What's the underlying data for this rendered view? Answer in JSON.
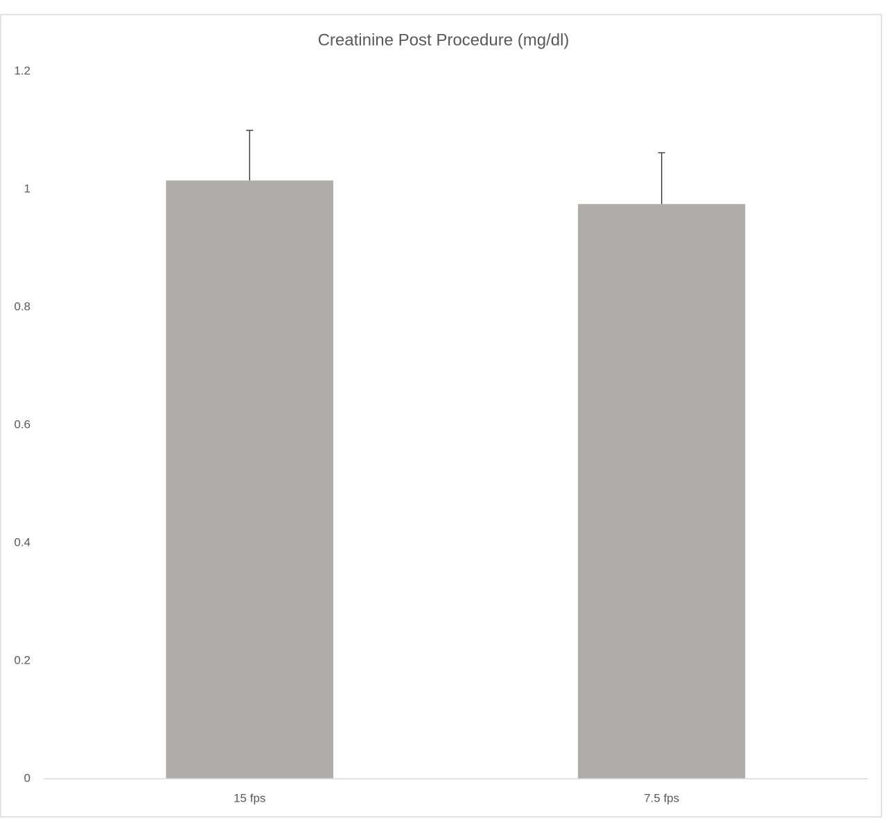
{
  "chart_data": {
    "type": "bar",
    "title": "Creatinine Post Procedure (mg/dl)",
    "categories": [
      "15 fps",
      "7.5 fps"
    ],
    "values": [
      1.015,
      0.975
    ],
    "errors": [
      0.085,
      0.087
    ],
    "color": "#aeadab",
    "ylim": [
      0,
      1.2
    ],
    "yticks": [
      0,
      0.2,
      0.4,
      0.6,
      0.8,
      1,
      1.2
    ],
    "grid": false
  }
}
